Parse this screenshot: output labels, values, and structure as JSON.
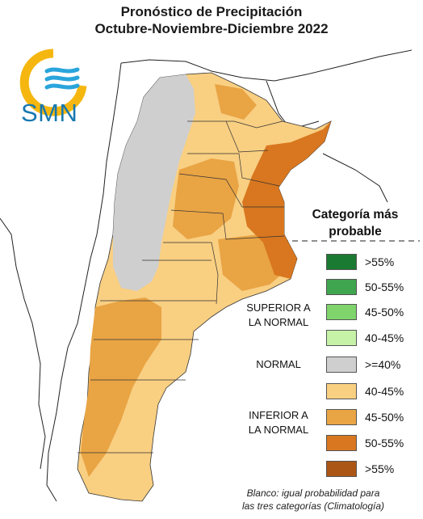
{
  "title": {
    "line1": "Pronóstico de Precipitación",
    "line2": "Octubre-Noviembre-Diciembre 2022"
  },
  "logo": {
    "text": "SMN",
    "icon": "smn-logo-icon"
  },
  "legend": {
    "title_line1": "Categoría más",
    "title_line2": "probable",
    "groups": {
      "superior": [
        "SUPERIOR A",
        "LA NORMAL"
      ],
      "normal": "NORMAL",
      "inferior": [
        "INFERIOR A",
        "LA NORMAL"
      ]
    },
    "items": [
      {
        "label": ">55%",
        "color": "#1b7a32",
        "group": "superior"
      },
      {
        "label": "50-55%",
        "color": "#3fa54e",
        "group": "superior"
      },
      {
        "label": "45-50%",
        "color": "#7fd46c",
        "group": "superior"
      },
      {
        "label": "40-45%",
        "color": "#c6f2a8",
        "group": "superior"
      },
      {
        "label": ">=40%",
        "color": "#cfcfcf",
        "group": "normal"
      },
      {
        "label": "40-45%",
        "color": "#f9cf82",
        "group": "inferior"
      },
      {
        "label": "45-50%",
        "color": "#e9a444",
        "group": "inferior"
      },
      {
        "label": "50-55%",
        "color": "#d8771f",
        "group": "inferior"
      },
      {
        "label": ">55%",
        "color": "#ac5615",
        "group": "inferior"
      }
    ]
  },
  "footnote": {
    "line1": "Blanco: igual probabilidad para",
    "line2": "las tres categorías (Climatología)"
  }
}
